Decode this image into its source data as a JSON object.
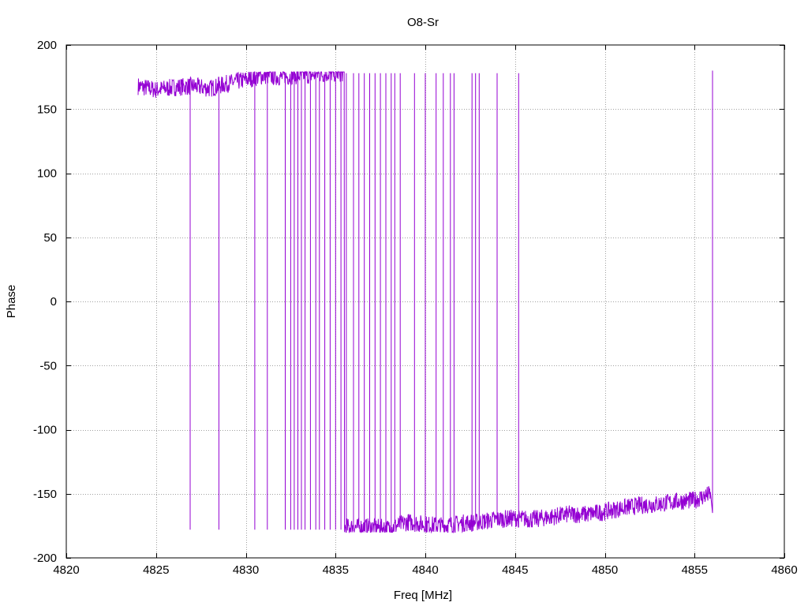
{
  "chart_data": {
    "type": "line",
    "title": "O8-Sr",
    "xlabel": "Freq [MHz]",
    "ylabel": "Phase",
    "xlim": [
      4820,
      4860
    ],
    "ylim": [
      -200,
      200
    ],
    "x_ticks": [
      4820,
      4825,
      4830,
      4835,
      4840,
      4845,
      4850,
      4855,
      4860
    ],
    "y_ticks": [
      -200,
      -150,
      -100,
      -50,
      0,
      50,
      100,
      150,
      200
    ],
    "grid": true,
    "line_color": "#9400d3",
    "series": [
      {
        "x_range": [
          4824.0,
          4856.0
        ],
        "baseline": [
          [
            4824.0,
            168
          ],
          [
            4825.0,
            165
          ],
          [
            4826.0,
            167
          ],
          [
            4827.0,
            168
          ],
          [
            4828.0,
            166
          ],
          [
            4829.0,
            170
          ],
          [
            4830.0,
            173
          ],
          [
            4831.0,
            176
          ],
          [
            4832.0,
            175
          ],
          [
            4833.0,
            176
          ],
          [
            4834.0,
            177
          ],
          [
            4835.0,
            178
          ],
          [
            4836.0,
            -176
          ],
          [
            4837.0,
            -176
          ],
          [
            4838.0,
            -177
          ],
          [
            4839.0,
            -172
          ],
          [
            4840.0,
            -174
          ],
          [
            4841.0,
            -175
          ],
          [
            4842.0,
            -173
          ],
          [
            4843.0,
            -172
          ],
          [
            4844.0,
            -170
          ],
          [
            4845.0,
            -169
          ],
          [
            4846.0,
            -170
          ],
          [
            4847.0,
            -168
          ],
          [
            4848.0,
            -166
          ],
          [
            4849.0,
            -166
          ],
          [
            4850.0,
            -164
          ],
          [
            4851.0,
            -161
          ],
          [
            4852.0,
            -159
          ],
          [
            4853.0,
            -158
          ],
          [
            4854.0,
            -156
          ],
          [
            4855.0,
            -155
          ],
          [
            4855.9,
            -150
          ],
          [
            4856.0,
            178
          ]
        ],
        "phase_wraps": [
          4826.9,
          4828.5,
          4830.5,
          4831.2,
          4832.2,
          4832.5,
          4832.7,
          4832.9,
          4833.1,
          4833.3,
          4833.6,
          4833.9,
          4834.1,
          4834.4,
          4834.7,
          4835.0,
          4835.3,
          4835.6,
          4836.0,
          4836.3,
          4836.6,
          4836.9,
          4837.2,
          4837.5,
          4837.8,
          4838.1,
          4838.3,
          4838.6,
          4839.4,
          4840.0,
          4840.6,
          4841.0,
          4841.4,
          4841.6,
          4842.6,
          4842.8,
          4843.0,
          4844.0,
          4845.2
        ]
      }
    ]
  }
}
